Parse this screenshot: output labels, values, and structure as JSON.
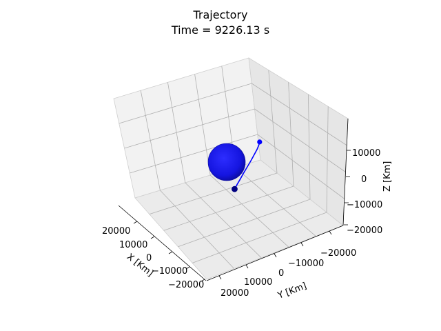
{
  "chart_data": {
    "type": "line",
    "projection": "3d",
    "title": "Trajectory",
    "subtitle": "Time = 9226.13 s",
    "xlabel": "X [Km]",
    "ylabel": "Y [Km]",
    "zlabel": "Z [Km]",
    "x_ticks": [
      "20000",
      "10000",
      "0",
      "−10000",
      "−20000"
    ],
    "y_ticks": [
      "−20000",
      "−10000",
      "0",
      "10000",
      "20000"
    ],
    "z_ticks": [
      "10000",
      "0",
      "−10000",
      "−20000"
    ],
    "xlim": [
      -25000,
      25000
    ],
    "ylim": [
      -25000,
      25000
    ],
    "zlim": [
      -20000,
      20000
    ],
    "grid": true,
    "series": [
      {
        "kind": "trajectory",
        "color": "#0000ff",
        "x": [
          -4000,
          -3200,
          -2000,
          -400,
          1200,
          2800,
          4200,
          5200,
          5800,
          6100
        ],
        "y": [
          -9500,
          -9700,
          -9800,
          -9700,
          -9500,
          -9100,
          -8600,
          -8000,
          -7300,
          -6600
        ],
        "z": [
          9300,
          8700,
          7800,
          6600,
          5200,
          3500,
          1700,
          -200,
          -2100,
          -3900
        ]
      }
    ],
    "markers": [
      {
        "kind": "start",
        "color": "#0000ff",
        "x": -4000,
        "y": -9500,
        "z": 9300
      },
      {
        "kind": "current",
        "color": "#000080",
        "x": 6100,
        "y": -6600,
        "z": -3900
      }
    ],
    "body": {
      "kind": "sphere",
      "color": "#0000ff",
      "radius": 6371,
      "center": [
        0,
        0,
        0
      ]
    }
  }
}
